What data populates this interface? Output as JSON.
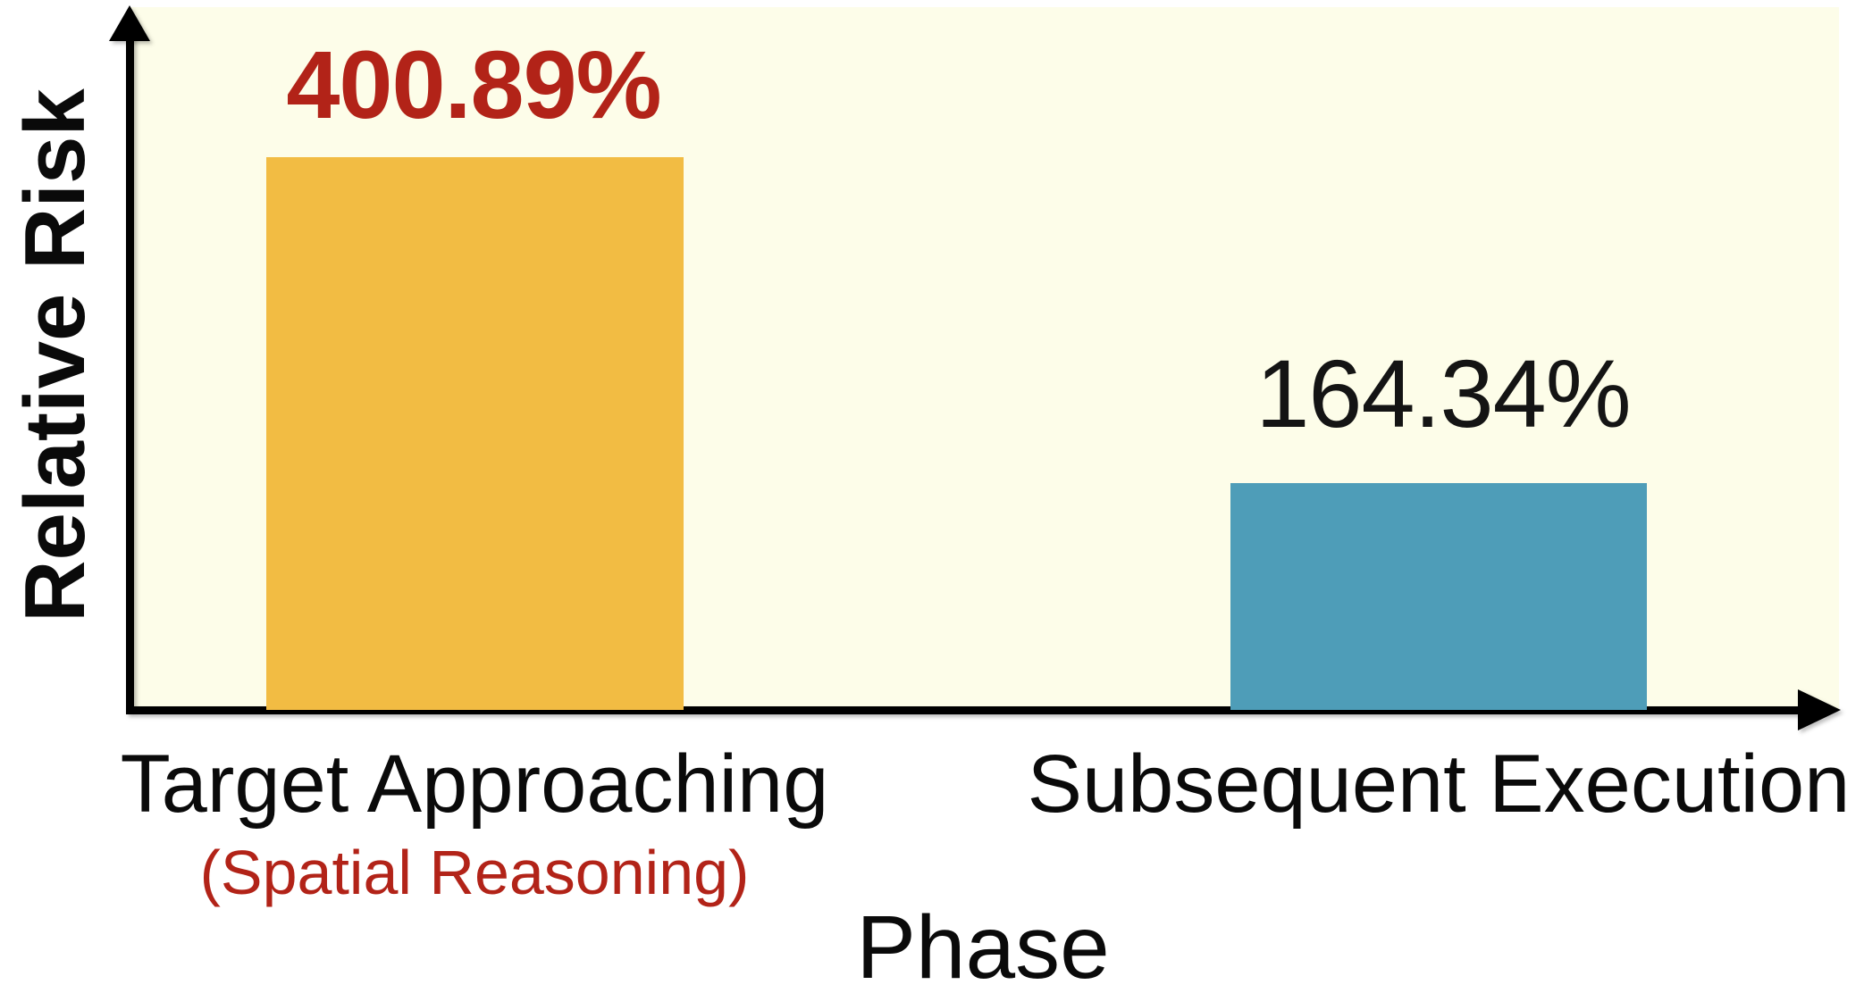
{
  "chart_data": {
    "type": "bar",
    "title": "",
    "xlabel": "Phase",
    "ylabel": "Relative Risk",
    "categories": [
      "Target Approaching",
      "Subsequent Execution"
    ],
    "category_sublabels": [
      "(Spatial Reasoning)",
      ""
    ],
    "values": [
      400.89,
      164.34
    ],
    "value_labels": [
      "400.89%",
      "164.34%"
    ],
    "bar_colors": [
      "#F2BC43",
      "#4E9DB8"
    ],
    "value_label_colors": [
      "#B22318",
      "#141414"
    ],
    "sublabel_color": "#B22318",
    "plot_background": "#FDFDE9",
    "axis_color": "#000000",
    "ylim": [
      0,
      510
    ],
    "grid": false,
    "legend": null
  }
}
